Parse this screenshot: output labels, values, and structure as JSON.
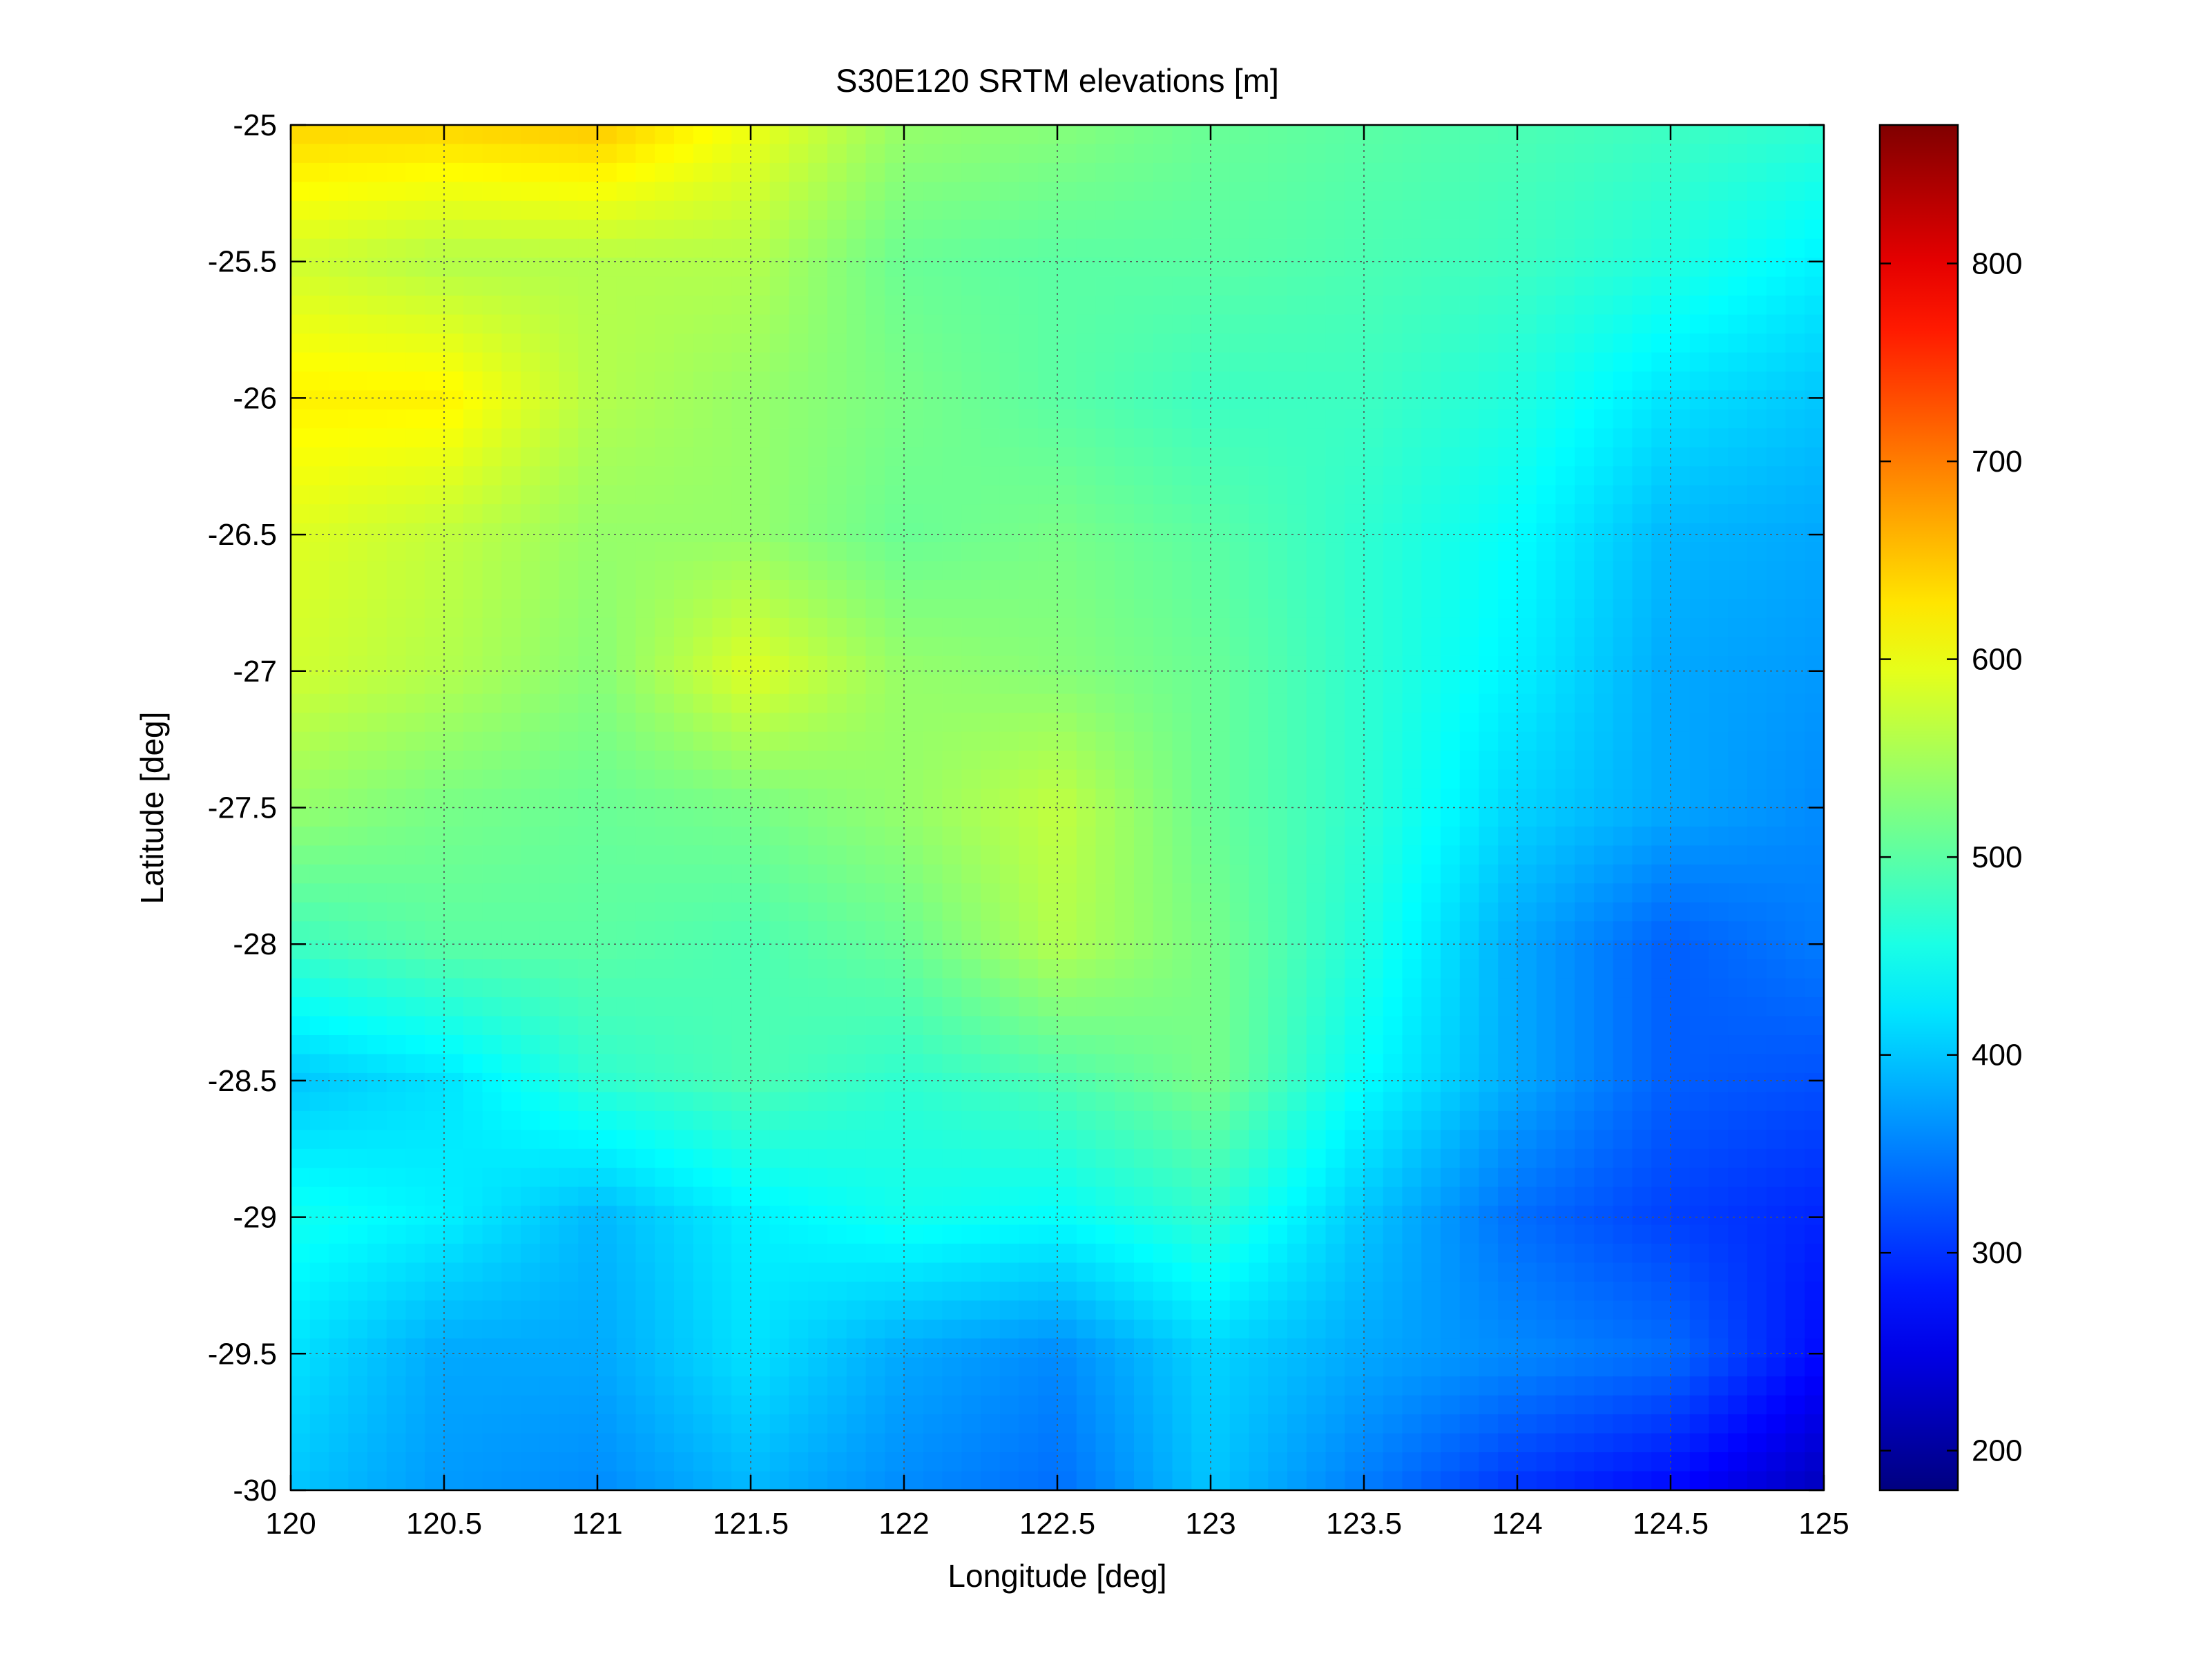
{
  "chart_data": {
    "type": "heatmap",
    "title": "S30E120 SRTM elevations [m]",
    "xlabel": "Longitude [deg]",
    "ylabel": "Latitude [deg]",
    "xlim": [
      120,
      125
    ],
    "ylim": [
      -30,
      -25
    ],
    "xticks": [
      120,
      120.5,
      121,
      121.5,
      122,
      122.5,
      123,
      123.5,
      124,
      124.5,
      125
    ],
    "xtick_labels": [
      "120",
      "120.5",
      "121",
      "121.5",
      "122",
      "122.5",
      "123",
      "123.5",
      "124",
      "124.5",
      "125"
    ],
    "yticks": [
      -25,
      -25.5,
      -26,
      -26.5,
      -27,
      -27.5,
      -28,
      -28.5,
      -29,
      -29.5,
      -30
    ],
    "ytick_labels": [
      "-25",
      "-25.5",
      "-26",
      "-26.5",
      "-27",
      "-27.5",
      "-28",
      "-28.5",
      "-29",
      "-29.5",
      "-30"
    ],
    "grid": true,
    "colormap": "jet",
    "colorbar": {
      "range": [
        180,
        870
      ],
      "ticks": [
        200,
        300,
        400,
        500,
        600,
        700,
        800
      ],
      "tick_labels": [
        "200",
        "300",
        "400",
        "500",
        "600",
        "700",
        "800"
      ],
      "position": "right"
    },
    "elevation_samples": {
      "longitudes": [
        120,
        120.5,
        121,
        121.5,
        122,
        122.5,
        123,
        123.5,
        124,
        124.5,
        125
      ],
      "latitudes": [
        -25,
        -25.5,
        -26,
        -26.5,
        -27,
        -27.5,
        -28,
        -28.5,
        -29,
        -29.5,
        -30
      ],
      "values": [
        [
          640,
          640,
          650,
          600,
          540,
          530,
          510,
          500,
          490,
          480,
          470
        ],
        [
          580,
          560,
          560,
          560,
          510,
          500,
          500,
          490,
          480,
          460,
          430
        ],
        [
          620,
          620,
          560,
          540,
          520,
          500,
          480,
          480,
          460,
          420,
          400
        ],
        [
          590,
          570,
          540,
          540,
          510,
          520,
          500,
          470,
          440,
          390,
          380
        ],
        [
          580,
          560,
          530,
          590,
          540,
          530,
          510,
          470,
          430,
          380,
          370
        ],
        [
          540,
          520,
          510,
          520,
          540,
          570,
          510,
          470,
          410,
          380,
          360
        ],
        [
          480,
          500,
          500,
          490,
          510,
          560,
          520,
          460,
          380,
          330,
          350
        ],
        [
          400,
          420,
          470,
          490,
          470,
          490,
          520,
          440,
          380,
          330,
          320
        ],
        [
          450,
          430,
          390,
          430,
          450,
          440,
          470,
          400,
          340,
          310,
          290
        ],
        [
          420,
          380,
          380,
          420,
          380,
          360,
          410,
          380,
          360,
          340,
          270
        ],
        [
          400,
          370,
          360,
          390,
          360,
          340,
          400,
          350,
          300,
          270,
          220
        ]
      ]
    }
  }
}
